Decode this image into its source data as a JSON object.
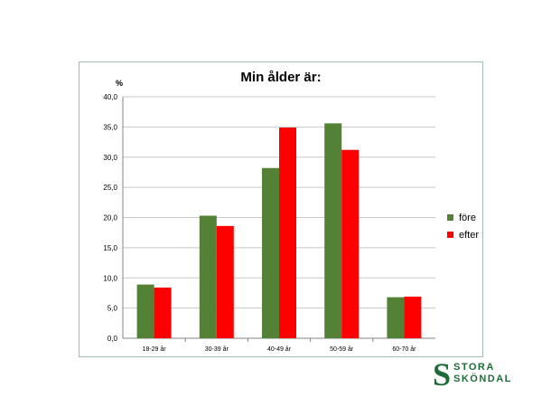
{
  "chart_data": {
    "type": "bar",
    "title": "Min ålder är:",
    "ylabel": "%",
    "xlabel": "",
    "categories": [
      "18-29 år",
      "30-39 år",
      "40-49 år",
      "50-59 år",
      "60-70 år"
    ],
    "series": [
      {
        "name": "före",
        "color": "#538135",
        "values": [
          8.9,
          20.3,
          28.2,
          35.6,
          6.8
        ]
      },
      {
        "name": "efter",
        "color": "#ff0000",
        "values": [
          8.4,
          18.6,
          34.9,
          31.2,
          6.9
        ]
      }
    ],
    "ylim": [
      0,
      40
    ],
    "yticks": [
      "0,0",
      "5,0",
      "10,0",
      "15,0",
      "20,0",
      "25,0",
      "30,0",
      "35,0",
      "40,0"
    ],
    "grid": true,
    "legend": "right"
  },
  "logo": {
    "line1": "STORA",
    "line2": "SKÖNDAL",
    "color": "#1e6b3a"
  }
}
